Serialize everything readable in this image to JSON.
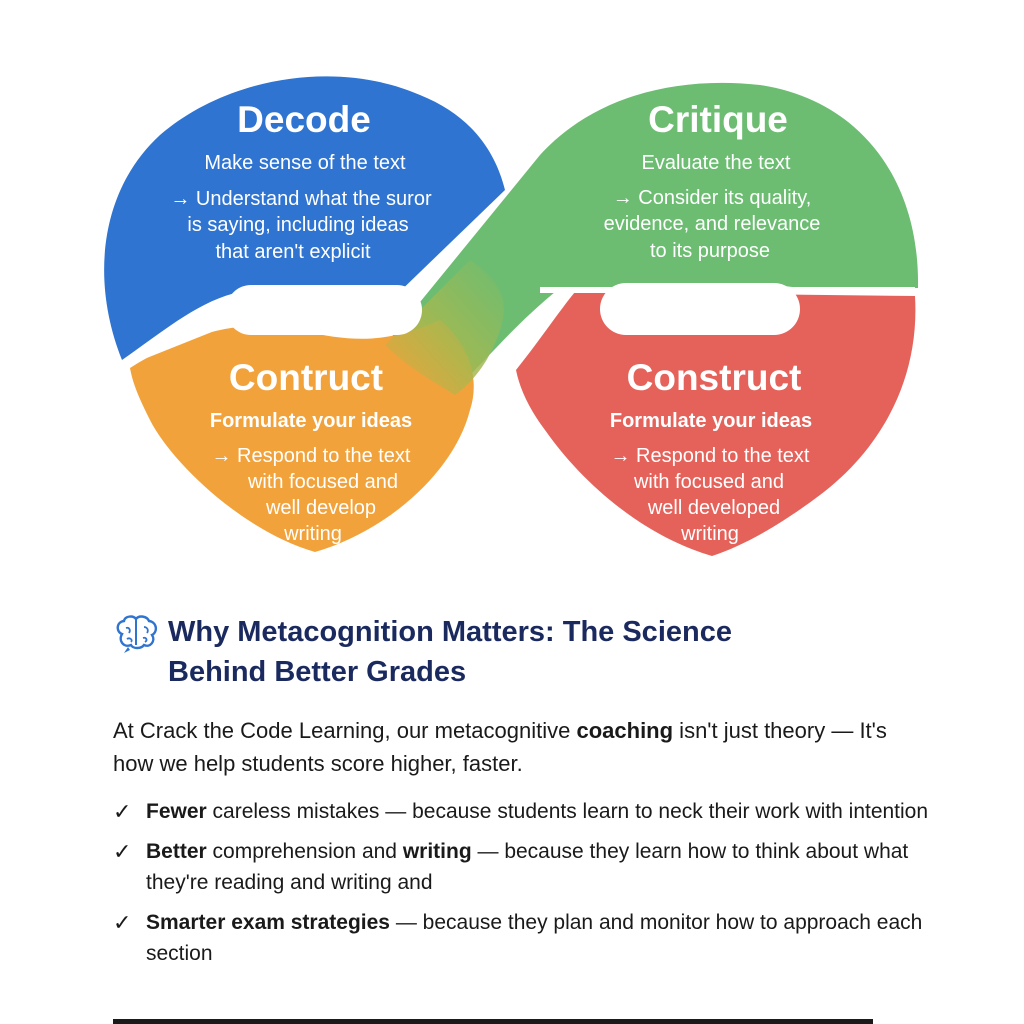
{
  "colors": {
    "decode": "#2f74d0",
    "critique": "#6cbd72",
    "contruct": "#f2a23a",
    "construct": "#e5625b",
    "heading": "#1b2a5e",
    "text": "#1a1a1a"
  },
  "diagram": {
    "decode": {
      "title": "Decode",
      "subtitle": "Make sense of the text",
      "lines": [
        "→ Understand what the suror",
        "is saying, including ideas",
        "that aren't explicit"
      ]
    },
    "critique": {
      "title": "Critique",
      "subtitle": "Evaluate the text",
      "lines": [
        "→ Consider its quality,",
        "evidence, and relevance",
        "to its purpose"
      ]
    },
    "contruct": {
      "title": "Contruct",
      "subtitle": "Formulate your ideas",
      "lines": [
        "→ Respond to the text",
        "with focused and",
        "well develop",
        "writing"
      ]
    },
    "construct": {
      "title": "Construct",
      "subtitle": "Formulate your ideas",
      "lines": [
        "→ Respond to the text",
        "with focused and",
        "well developed",
        "writing"
      ]
    }
  },
  "section": {
    "icon": "brain-icon",
    "heading_line1": "Why Metacognition Matters: The Science",
    "heading_line2": "Behind Better Grades",
    "intro_a": "At Crack the Code Learning, our metacognitive ",
    "intro_bold": "coaching",
    "intro_b": " isn't just theory — It's how we help students score higher, faster.",
    "check_symbol": "✓",
    "benefits": [
      {
        "bold": "Fewer",
        "rest": " careless mistakes — because students learn to neck their work with intention"
      },
      {
        "bold": "Better",
        "rest": " comprehension and ",
        "bold2": "writing",
        "rest2": " — because they learn how to think about what they're reading and writing and"
      },
      {
        "bold": "Smarter exam strategies",
        "rest": " — because they plan and monitor how to approach each section"
      }
    ]
  }
}
